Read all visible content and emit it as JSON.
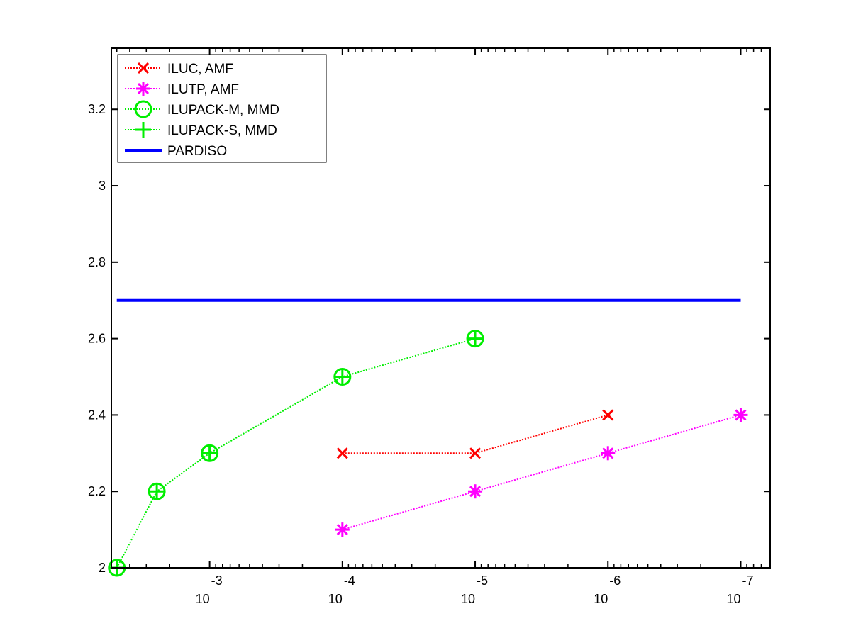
{
  "chart_data": {
    "type": "line",
    "title": "",
    "xlabel": "",
    "ylabel": "",
    "x_scale": "log",
    "x_reversed": true,
    "x_tick_labels": [
      {
        "value": 0.001,
        "base": "10",
        "exponent": "-3"
      },
      {
        "value": 0.0001,
        "base": "10",
        "exponent": "-4"
      },
      {
        "value": 1e-05,
        "base": "10",
        "exponent": "-5"
      },
      {
        "value": 1e-06,
        "base": "10",
        "exponent": "-6"
      },
      {
        "value": 1e-07,
        "base": "10",
        "exponent": "-7"
      }
    ],
    "y_ticks": [
      {
        "value": 2,
        "label": "2"
      },
      {
        "value": 2.2,
        "label": "2.2"
      },
      {
        "value": 2.4,
        "label": "2.4"
      },
      {
        "value": 2.6,
        "label": "2.6"
      },
      {
        "value": 2.8,
        "label": "2.8"
      },
      {
        "value": 3,
        "label": "3"
      },
      {
        "value": 3.2,
        "label": "3.2"
      }
    ],
    "xlim": [
      0.0055,
      6e-08
    ],
    "ylim": [
      2,
      3.36
    ],
    "grid": false,
    "legend_position": "top-left",
    "series": [
      {
        "name": "ILUC, AMF",
        "color": "#ff0000",
        "line_style": "dotted",
        "marker": "x",
        "x": [
          0.0001,
          1e-05,
          1e-06
        ],
        "y": [
          2.3,
          2.3,
          2.4
        ]
      },
      {
        "name": "ILUTP, AMF",
        "color": "#ff00ff",
        "line_style": "dotted",
        "marker": "asterisk",
        "x": [
          0.0001,
          1e-05,
          1e-06,
          1e-07
        ],
        "y": [
          2.1,
          2.2,
          2.3,
          2.4
        ]
      },
      {
        "name": "ILUPACK-M, MMD",
        "color": "#00ee00",
        "line_style": "dotted",
        "marker": "circle",
        "x": [
          0.005,
          0.0025,
          0.001,
          0.0001,
          1e-05
        ],
        "y": [
          2.0,
          2.2,
          2.3,
          2.5,
          2.6
        ]
      },
      {
        "name": "ILUPACK-S, MMD",
        "color": "#00ee00",
        "line_style": "dotted",
        "marker": "plus",
        "x": [
          0.005,
          0.0025,
          0.001,
          0.0001,
          1e-05
        ],
        "y": [
          2.0,
          2.2,
          2.3,
          2.5,
          2.6
        ]
      },
      {
        "name": "PARDISO",
        "color": "#0000ff",
        "line_style": "solid",
        "marker": "none",
        "x": [
          0.005,
          1e-07
        ],
        "y": [
          2.7,
          2.7
        ]
      }
    ]
  }
}
